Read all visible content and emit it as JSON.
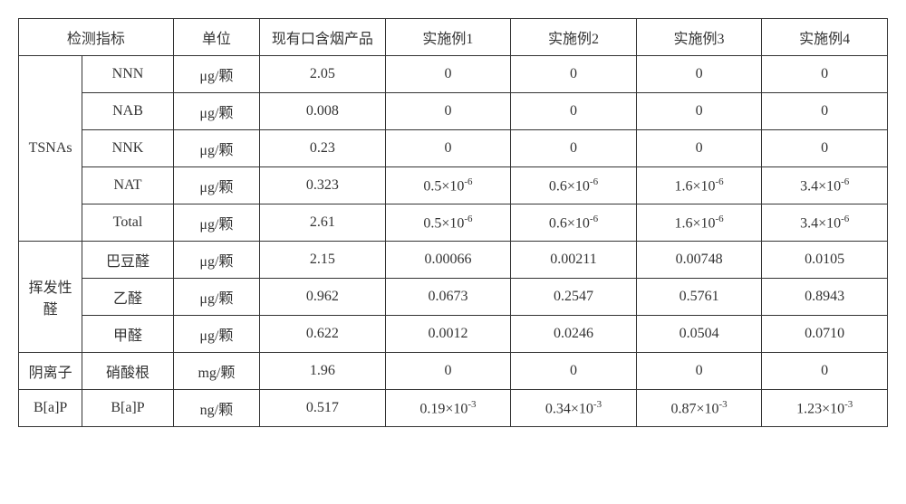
{
  "header": {
    "indicator": "检测指标",
    "unit": "单位",
    "existing": "现有口含烟产品",
    "ex1": "实施例1",
    "ex2": "实施例2",
    "ex3": "实施例3",
    "ex4": "实施例4"
  },
  "groups": {
    "tsnas": "TSNAs",
    "vol": "挥发性醛",
    "anion": "阴离子",
    "bap": "B[a]P"
  },
  "rows": {
    "nnn": {
      "sub": "NNN",
      "unit": "μg/颗",
      "v0": "2.05",
      "v1": "0",
      "v2": "0",
      "v3": "0",
      "v4": "0"
    },
    "nab": {
      "sub": "NAB",
      "unit": "μg/颗",
      "v0": "0.008",
      "v1": "0",
      "v2": "0",
      "v3": "0",
      "v4": "0"
    },
    "nnk": {
      "sub": "NNK",
      "unit": "μg/颗",
      "v0": "0.23",
      "v1": "0",
      "v2": "0",
      "v3": "0",
      "v4": "0"
    },
    "nat": {
      "sub": "NAT",
      "unit": "μg/颗",
      "v0": "0.323",
      "v1": "0.5×10",
      "v2": "0.6×10",
      "v3": "1.6×10",
      "v4": "3.4×10",
      "exp": "-6"
    },
    "total": {
      "sub": "Total",
      "unit": "μg/颗",
      "v0": "2.61",
      "v1": "0.5×10",
      "v2": "0.6×10",
      "v3": "1.6×10",
      "v4": "3.4×10",
      "exp": "-6"
    },
    "croton": {
      "sub": "巴豆醛",
      "unit": "μg/颗",
      "v0": "2.15",
      "v1": "0.00066",
      "v2": "0.00211",
      "v3": "0.00748",
      "v4": "0.0105"
    },
    "acet": {
      "sub": "乙醛",
      "unit": "μg/颗",
      "v0": "0.962",
      "v1": "0.0673",
      "v2": "0.2547",
      "v3": "0.5761",
      "v4": "0.8943"
    },
    "form": {
      "sub": "甲醛",
      "unit": "μg/颗",
      "v0": "0.622",
      "v1": "0.0012",
      "v2": "0.0246",
      "v3": "0.0504",
      "v4": "0.0710"
    },
    "nit": {
      "sub": "硝酸根",
      "unit": "mg/颗",
      "v0": "1.96",
      "v1": "0",
      "v2": "0",
      "v3": "0",
      "v4": "0"
    },
    "bap": {
      "sub": "B[a]P",
      "unit": "ng/颗",
      "v0": "0.517",
      "v1": "0.19×10",
      "v2": "0.34×10",
      "v3": "0.87×10",
      "v4": "1.23×10",
      "exp": "-3"
    }
  }
}
